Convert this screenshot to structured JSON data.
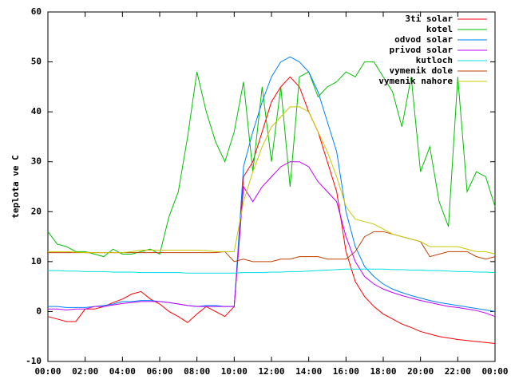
{
  "chart_data": {
    "type": "line",
    "y_label": "teplota ve C",
    "x": [
      0,
      0.5,
      1,
      1.5,
      2,
      2.5,
      3,
      3.5,
      4,
      4.5,
      5,
      5.5,
      6,
      6.5,
      7,
      7.5,
      8,
      8.5,
      9,
      9.5,
      10,
      10.5,
      11,
      11.5,
      12,
      12.5,
      13,
      13.5,
      14,
      14.5,
      15,
      15.5,
      16,
      16.5,
      17,
      17.5,
      18,
      18.5,
      19,
      19.5,
      20,
      20.5,
      21,
      21.5,
      22,
      22.5,
      23,
      23.5,
      24
    ],
    "xlim": [
      0,
      24
    ],
    "xticks": [
      {
        "value": 0,
        "label": "00:00"
      },
      {
        "value": 2,
        "label": "02:00"
      },
      {
        "value": 4,
        "label": "04:00"
      },
      {
        "value": 6,
        "label": "06:00"
      },
      {
        "value": 8,
        "label": "08:00"
      },
      {
        "value": 10,
        "label": "10:00"
      },
      {
        "value": 12,
        "label": "12:00"
      },
      {
        "value": 14,
        "label": "14:00"
      },
      {
        "value": 16,
        "label": "16:00"
      },
      {
        "value": 18,
        "label": "18:00"
      },
      {
        "value": 20,
        "label": "20:00"
      },
      {
        "value": 22,
        "label": "22:00"
      },
      {
        "value": 24,
        "label": "00:00"
      }
    ],
    "ylim": [
      -10,
      60
    ],
    "yticks": [
      -10,
      0,
      10,
      20,
      30,
      40,
      50,
      60
    ],
    "grid": false,
    "legend": "top-right",
    "series": [
      {
        "name": "3ti solar",
        "color": "#ff0000",
        "values": [
          -1,
          -1.5,
          -2,
          -2,
          0.5,
          0.5,
          1,
          1.8,
          2.5,
          3.5,
          4,
          2.5,
          1.5,
          0,
          -1,
          -2.2,
          -0.5,
          1,
          0,
          -1,
          1,
          27,
          30,
          36,
          42,
          45,
          47,
          45,
          40,
          36,
          30,
          24,
          12,
          6,
          3,
          1,
          -0.5,
          -1.5,
          -2.5,
          -3.2,
          -4,
          -4.5,
          -5,
          -5.3,
          -5.6,
          -5.8,
          -6,
          -6.2,
          -6.4
        ]
      },
      {
        "name": "kotel",
        "color": "#00c000",
        "values": [
          16,
          13.5,
          13,
          12,
          12,
          11.5,
          11,
          12.5,
          11.5,
          11.5,
          12,
          12.5,
          11.5,
          19,
          24,
          35,
          48,
          40,
          34,
          30,
          36,
          46,
          28,
          45,
          30,
          45,
          25,
          47,
          48,
          43,
          45,
          46,
          48,
          47,
          50,
          50,
          47,
          44,
          37,
          47,
          28,
          33,
          22,
          17,
          47,
          24,
          28,
          27,
          21
        ]
      },
      {
        "name": "odvod solar",
        "color": "#0080ff",
        "values": [
          1,
          1,
          0.8,
          0.8,
          0.8,
          1,
          1.2,
          1.5,
          2,
          2,
          2.2,
          2.2,
          2,
          1.8,
          1.5,
          1.2,
          1,
          1.2,
          1.2,
          1,
          1,
          29,
          36,
          42,
          47,
          50,
          51,
          50,
          48,
          44,
          38,
          32,
          20,
          13,
          9,
          7,
          5.5,
          4.5,
          3.8,
          3.2,
          2.7,
          2.2,
          1.8,
          1.5,
          1.2,
          0.9,
          0.6,
          0.3,
          0
        ]
      },
      {
        "name": "privod solar",
        "color": "#c000ff",
        "values": [
          0.5,
          0.5,
          0.3,
          0.5,
          0.5,
          1,
          1,
          1.3,
          1.6,
          1.8,
          2,
          2,
          2,
          1.8,
          1.5,
          1.2,
          1,
          1,
          1,
          1,
          1,
          25,
          22,
          25,
          27,
          29,
          30,
          30,
          29,
          26,
          24,
          22,
          15,
          10,
          7,
          5.5,
          4.5,
          3.8,
          3.2,
          2.7,
          2.2,
          1.8,
          1.4,
          1,
          0.8,
          0.5,
          0.2,
          -0.3,
          -1
        ]
      },
      {
        "name": "kutloch",
        "color": "#00e0e0",
        "values": [
          8.2,
          8.2,
          8.1,
          8.1,
          8,
          8,
          8,
          7.9,
          7.9,
          7.9,
          7.8,
          7.8,
          7.8,
          7.8,
          7.8,
          7.7,
          7.7,
          7.7,
          7.7,
          7.7,
          7.7,
          7.8,
          7.8,
          7.8,
          7.9,
          7.9,
          8,
          8,
          8.1,
          8.2,
          8.3,
          8.4,
          8.5,
          8.5,
          8.5,
          8.5,
          8.5,
          8.4,
          8.4,
          8.3,
          8.3,
          8.2,
          8.2,
          8.1,
          8,
          8,
          7.9,
          7.9,
          7.8
        ]
      },
      {
        "name": "vymenik dole",
        "color": "#c04000",
        "values": [
          11.8,
          11.8,
          11.8,
          11.8,
          11.8,
          11.8,
          11.8,
          11.8,
          11.8,
          11.8,
          11.8,
          11.8,
          11.8,
          11.8,
          11.8,
          11.8,
          11.8,
          11.8,
          11.8,
          12,
          10,
          10.5,
          10,
          10,
          10,
          10.5,
          10.5,
          11,
          11,
          11,
          10.5,
          10.5,
          10.5,
          12,
          15,
          16,
          16,
          15.5,
          15,
          14.5,
          14,
          11,
          11.5,
          12,
          12,
          12,
          11,
          10.5,
          11
        ]
      },
      {
        "name": "vymenik nahore",
        "color": "#c8c800",
        "values": [
          12,
          12,
          12,
          11.9,
          11.8,
          11.8,
          11.8,
          11.8,
          11.8,
          12,
          12.3,
          12.3,
          12.3,
          12.3,
          12.3,
          12.3,
          12.3,
          12.2,
          12,
          12,
          12,
          22,
          28,
          33,
          37,
          39,
          41,
          41,
          40,
          36,
          32,
          27,
          21,
          18.5,
          18,
          17.5,
          16.5,
          15.5,
          15,
          14.5,
          14,
          13,
          13,
          13,
          13,
          12.5,
          12,
          12,
          11.5
        ]
      }
    ]
  }
}
